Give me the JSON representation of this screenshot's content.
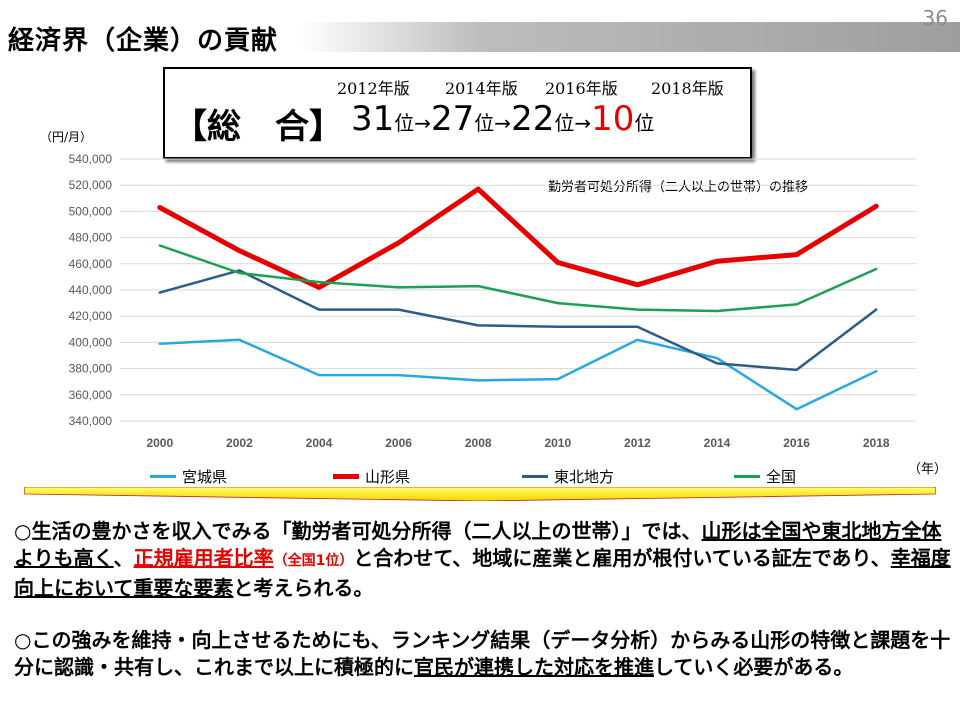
{
  "header": {
    "title": "経済界（企業）の貢献",
    "page_number": "36"
  },
  "ranking": {
    "years": [
      "2012年版",
      "2014年版",
      "2016年版",
      "2018年版"
    ],
    "label": "【総　合】",
    "r1": "31",
    "r2": "27",
    "r3": "22",
    "r4": "10",
    "unit": "位",
    "arrow": "→"
  },
  "chart_data": {
    "type": "line",
    "title": "勤労者可処分所得（二人以上の世帯）の推移",
    "ylabel": "（円/月）",
    "xlabel": "（年）",
    "x": [
      "2000",
      "2002",
      "2004",
      "2006",
      "2008",
      "2010",
      "2012",
      "2014",
      "2016",
      "2018"
    ],
    "ylim": [
      340000,
      540000
    ],
    "yticks": [
      "340,000",
      "360,000",
      "380,000",
      "400,000",
      "420,000",
      "440,000",
      "460,000",
      "480,000",
      "500,000",
      "520,000",
      "540,000"
    ],
    "grid": true,
    "legend_position": "bottom",
    "series": [
      {
        "name": "宮城県",
        "color": "#29a8e0",
        "width": 2.5,
        "values": [
          399000,
          402000,
          375000,
          375000,
          371000,
          372000,
          402000,
          388000,
          349000,
          378000
        ]
      },
      {
        "name": "山形県",
        "color": "#e60000",
        "width": 5,
        "values": [
          503000,
          470000,
          442000,
          476000,
          517000,
          461000,
          444000,
          462000,
          467000,
          504000
        ]
      },
      {
        "name": "東北地方",
        "color": "#2e5b87",
        "width": 2.5,
        "values": [
          438000,
          455000,
          425000,
          425000,
          413000,
          412000,
          412000,
          384000,
          379000,
          425000
        ]
      },
      {
        "name": "全国",
        "color": "#1f9e55",
        "width": 2.5,
        "values": [
          474000,
          453000,
          446000,
          442000,
          443000,
          430000,
          425000,
          424000,
          429000,
          456000
        ]
      }
    ]
  },
  "paragraph1": {
    "bullet": "○",
    "t1": "生活の豊かさを収入でみる「勤労者可処分所得（二人以上の世帯）」では、",
    "t2": "山形は",
    "t3": "全国や東北地方全体よりも高く",
    "t4": "、",
    "t5": "正規雇用者比率",
    "t6": "（全国1位）",
    "t7": "と合わせて、地域に産業と雇用が根付いている証左であり、",
    "t8": "幸福度向上において重要な要素",
    "t9": "と考えられる。"
  },
  "paragraph2": {
    "bullet": "○",
    "t1": "この強みを維持・向上させるためにも、ランキング結果（データ分析）からみる山形の特徴と課題を十分に認識・共有し、これまで以上に積極的に",
    "t2": "官民が連携した対応を推進",
    "t3": "していく必要がある。"
  }
}
